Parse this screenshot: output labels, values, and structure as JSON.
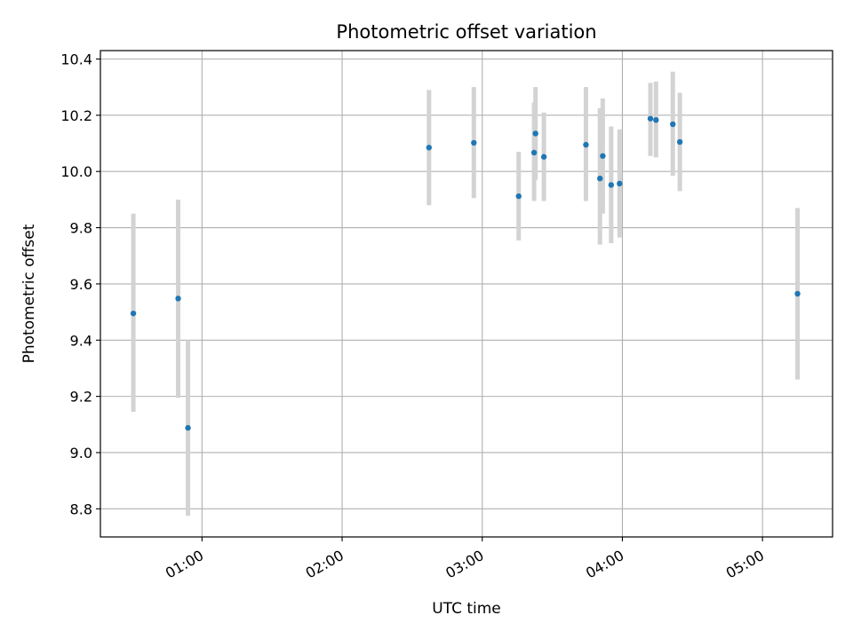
{
  "chart_data": {
    "type": "scatter",
    "title": "Photometric offset variation",
    "xlabel": "UTC time",
    "ylabel": "Photometric offset",
    "x_axis": {
      "unit": "UTC time (hours)",
      "range": [
        0.275,
        5.5
      ],
      "ticks": [
        {
          "value": 1.0,
          "label": "01:00"
        },
        {
          "value": 2.0,
          "label": "02:00"
        },
        {
          "value": 3.0,
          "label": "03:00"
        },
        {
          "value": 4.0,
          "label": "04:00"
        },
        {
          "value": 5.0,
          "label": "05:00"
        }
      ]
    },
    "y_axis": {
      "range": [
        8.7,
        10.43
      ],
      "ticks": [
        {
          "value": 8.8,
          "label": "8.8"
        },
        {
          "value": 9.0,
          "label": "9.0"
        },
        {
          "value": 9.2,
          "label": "9.2"
        },
        {
          "value": 9.4,
          "label": "9.4"
        },
        {
          "value": 9.6,
          "label": "9.6"
        },
        {
          "value": 9.8,
          "label": "9.8"
        },
        {
          "value": 10.0,
          "label": "10.0"
        },
        {
          "value": 10.2,
          "label": "10.2"
        },
        {
          "value": 10.4,
          "label": "10.4"
        }
      ]
    },
    "grid": true,
    "legend": "none",
    "colors": {
      "points": "#1f77b4",
      "error_bars": "#d3d3d3",
      "grid": "#b0b0b0"
    },
    "points": [
      {
        "x": 0.51,
        "y": 9.495,
        "err_low": 9.145,
        "err_high": 9.85
      },
      {
        "x": 0.83,
        "y": 9.548,
        "err_low": 9.195,
        "err_high": 9.9
      },
      {
        "x": 0.9,
        "y": 9.088,
        "err_low": 8.775,
        "err_high": 9.4
      },
      {
        "x": 2.62,
        "y": 10.085,
        "err_low": 9.88,
        "err_high": 10.29
      },
      {
        "x": 2.94,
        "y": 10.102,
        "err_low": 9.905,
        "err_high": 10.3
      },
      {
        "x": 3.26,
        "y": 9.912,
        "err_low": 9.755,
        "err_high": 10.07
      },
      {
        "x": 3.37,
        "y": 10.067,
        "err_low": 9.895,
        "err_high": 10.245
      },
      {
        "x": 3.38,
        "y": 10.135,
        "err_low": 9.97,
        "err_high": 10.3
      },
      {
        "x": 3.44,
        "y": 10.052,
        "err_low": 9.895,
        "err_high": 10.21
      },
      {
        "x": 3.74,
        "y": 10.095,
        "err_low": 9.895,
        "err_high": 10.3
      },
      {
        "x": 3.84,
        "y": 9.975,
        "err_low": 9.74,
        "err_high": 10.225
      },
      {
        "x": 3.86,
        "y": 10.055,
        "err_low": 9.85,
        "err_high": 10.26
      },
      {
        "x": 3.92,
        "y": 9.952,
        "err_low": 9.745,
        "err_high": 10.16
      },
      {
        "x": 3.98,
        "y": 9.957,
        "err_low": 9.765,
        "err_high": 10.15
      },
      {
        "x": 4.2,
        "y": 10.188,
        "err_low": 10.055,
        "err_high": 10.315
      },
      {
        "x": 4.24,
        "y": 10.183,
        "err_low": 10.05,
        "err_high": 10.32
      },
      {
        "x": 4.36,
        "y": 10.168,
        "err_low": 9.985,
        "err_high": 10.355
      },
      {
        "x": 4.41,
        "y": 10.105,
        "err_low": 9.93,
        "err_high": 10.28
      },
      {
        "x": 5.25,
        "y": 9.565,
        "err_low": 9.26,
        "err_high": 9.87
      }
    ]
  }
}
